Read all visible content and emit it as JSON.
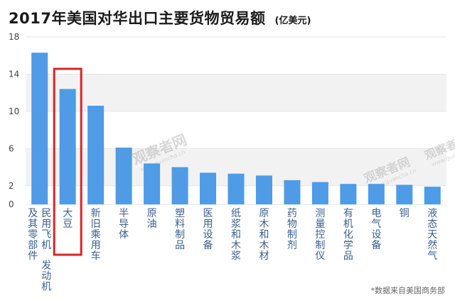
{
  "title": "2017年美国对华出口主要货物贸易额",
  "unit": "(亿美元)",
  "source": "*数据来自美国商务部",
  "watermark": {
    "main": "观察者网",
    "url": "www.guancha.cn"
  },
  "highlight_color": "#d9232a",
  "bar_color": "#4f9be6",
  "chart_data": {
    "type": "bar",
    "title": "2017年美国对华出口主要货物贸易额",
    "ylabel": "(亿美元)",
    "ylim": [
      0,
      18
    ],
    "yticks": [
      0,
      2,
      6,
      10,
      14,
      18
    ],
    "grid": "horizontal-bands",
    "highlight_index": 1,
    "categories": [
      "民用飞机发动机及其零部件",
      "大豆",
      "新旧乘用车",
      "半导体",
      "原油",
      "塑料制品",
      "医用设备",
      "纸浆和木浆",
      "原木和木材",
      "药物制剂",
      "测量控制仪",
      "有机化学品",
      "电气设备",
      "铜",
      "液态天然气"
    ],
    "label_columns": [
      [
        [
          "及其零部件"
        ],
        [
          "民用飞机",
          "发动机"
        ]
      ],
      [
        [
          "大豆"
        ]
      ],
      [
        [
          "新旧乘用车"
        ]
      ],
      [
        [
          "半导体"
        ]
      ],
      [
        [
          "原油"
        ]
      ],
      [
        [
          "塑料制品"
        ]
      ],
      [
        [
          "医用设备"
        ]
      ],
      [
        [
          "纸浆和木浆"
        ]
      ],
      [
        [
          "原木和木材"
        ]
      ],
      [
        [
          "药物制剂"
        ]
      ],
      [
        [
          "测量控制仪"
        ]
      ],
      [
        [
          "有机化学品"
        ]
      ],
      [
        [
          "电气设备"
        ]
      ],
      [
        [
          "铜"
        ]
      ],
      [
        [
          "液态天然气"
        ]
      ]
    ],
    "values": [
      16.3,
      12.4,
      10.6,
      6.1,
      4.4,
      4.0,
      3.4,
      3.3,
      3.1,
      2.6,
      2.4,
      2.2,
      2.2,
      2.1,
      1.9
    ]
  }
}
